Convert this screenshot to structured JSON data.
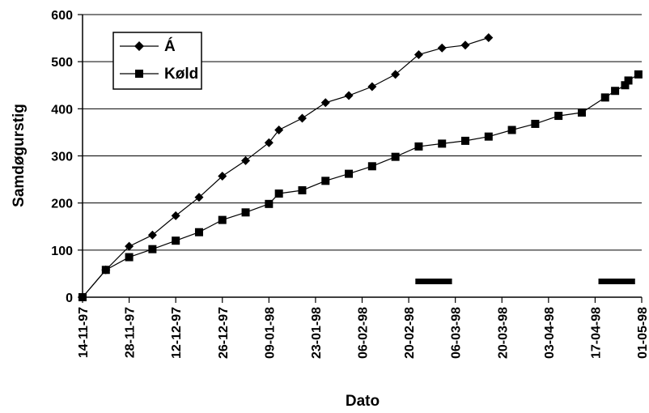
{
  "chart_data": {
    "type": "line",
    "xlabel": "Dato",
    "ylabel": "Samdøgurstig",
    "ylim": [
      0,
      600
    ],
    "yticks": [
      "0",
      "100",
      "200",
      "300",
      "400",
      "500",
      "600"
    ],
    "xlim": [
      "1997-11-14",
      "1998-05-01"
    ],
    "xticks": [
      {
        "date": "1997-11-14",
        "label": "14-11-97"
      },
      {
        "date": "1997-11-28",
        "label": "28-11-97"
      },
      {
        "date": "1997-12-12",
        "label": "12-12-97"
      },
      {
        "date": "1997-12-26",
        "label": "26-12-97"
      },
      {
        "date": "1998-01-09",
        "label": "09-01-98"
      },
      {
        "date": "1998-01-23",
        "label": "23-01-98"
      },
      {
        "date": "1998-02-06",
        "label": "06-02-98"
      },
      {
        "date": "1998-02-20",
        "label": "20-02-98"
      },
      {
        "date": "1998-03-06",
        "label": "06-03-98"
      },
      {
        "date": "1998-03-20",
        "label": "20-03-98"
      },
      {
        "date": "1998-04-03",
        "label": "03-04-98"
      },
      {
        "date": "1998-04-17",
        "label": "17-04-98"
      },
      {
        "date": "1998-05-01",
        "label": "01-05-98"
      }
    ],
    "grid": "horizontal",
    "legend_position": "top-left",
    "series": [
      {
        "name": "Á",
        "marker": "diamond",
        "color": "#000000",
        "points": [
          {
            "x": "1997-11-14",
            "y": 0
          },
          {
            "x": "1997-11-21",
            "y": 58
          },
          {
            "x": "1997-11-28",
            "y": 108
          },
          {
            "x": "1997-12-05",
            "y": 132
          },
          {
            "x": "1997-12-12",
            "y": 173
          },
          {
            "x": "1997-12-19",
            "y": 212
          },
          {
            "x": "1997-12-26",
            "y": 257
          },
          {
            "x": "1998-01-02",
            "y": 290
          },
          {
            "x": "1998-01-09",
            "y": 328
          },
          {
            "x": "1998-01-12",
            "y": 355
          },
          {
            "x": "1998-01-19",
            "y": 380
          },
          {
            "x": "1998-01-26",
            "y": 413
          },
          {
            "x": "1998-02-02",
            "y": 428
          },
          {
            "x": "1998-02-09",
            "y": 447
          },
          {
            "x": "1998-02-16",
            "y": 473
          },
          {
            "x": "1998-02-23",
            "y": 515
          },
          {
            "x": "1998-03-02",
            "y": 529
          },
          {
            "x": "1998-03-09",
            "y": 535
          },
          {
            "x": "1998-03-16",
            "y": 551
          }
        ]
      },
      {
        "name": "Køld",
        "marker": "square",
        "color": "#000000",
        "points": [
          {
            "x": "1997-11-14",
            "y": 0
          },
          {
            "x": "1997-11-21",
            "y": 58
          },
          {
            "x": "1997-11-28",
            "y": 85
          },
          {
            "x": "1997-12-05",
            "y": 102
          },
          {
            "x": "1997-12-12",
            "y": 120
          },
          {
            "x": "1997-12-19",
            "y": 138
          },
          {
            "x": "1997-12-26",
            "y": 164
          },
          {
            "x": "1998-01-02",
            "y": 180
          },
          {
            "x": "1998-01-09",
            "y": 198
          },
          {
            "x": "1998-01-12",
            "y": 220
          },
          {
            "x": "1998-01-19",
            "y": 227
          },
          {
            "x": "1998-01-26",
            "y": 247
          },
          {
            "x": "1998-02-02",
            "y": 262
          },
          {
            "x": "1998-02-09",
            "y": 278
          },
          {
            "x": "1998-02-16",
            "y": 298
          },
          {
            "x": "1998-02-23",
            "y": 320
          },
          {
            "x": "1998-03-02",
            "y": 326
          },
          {
            "x": "1998-03-09",
            "y": 332
          },
          {
            "x": "1998-03-16",
            "y": 341
          },
          {
            "x": "1998-03-23",
            "y": 355
          },
          {
            "x": "1998-03-30",
            "y": 368
          },
          {
            "x": "1998-04-06",
            "y": 385
          },
          {
            "x": "1998-04-13",
            "y": 392
          },
          {
            "x": "1998-04-20",
            "y": 424
          },
          {
            "x": "1998-04-23",
            "y": 438
          },
          {
            "x": "1998-04-26",
            "y": 450
          },
          {
            "x": "1998-04-27",
            "y": 460
          },
          {
            "x": "1998-04-30",
            "y": 473
          }
        ]
      }
    ],
    "period_bars": [
      {
        "start": "1998-02-22",
        "end": "1998-03-05"
      },
      {
        "start": "1998-04-18",
        "end": "1998-04-29"
      }
    ]
  }
}
